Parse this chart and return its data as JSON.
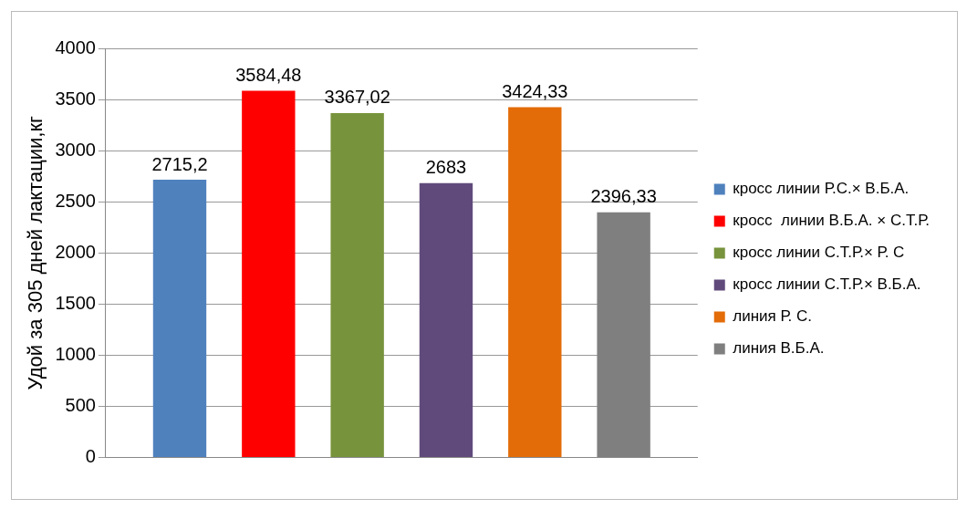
{
  "chart_data": {
    "type": "bar",
    "ylabel": "Удой за 305 дней лактации,кг",
    "categories": [
      null
    ],
    "series": [
      {
        "name": "кросс линии Р.С.× В.Б.А.",
        "color": "#4f81bd",
        "values": [
          2715.2
        ],
        "value_labels": [
          "2715,2"
        ]
      },
      {
        "name": "кросс  линии В.Б.А. × С.Т.Р.",
        "color": "#ff0000",
        "values": [
          3584.48
        ],
        "value_labels": [
          "3584,48"
        ]
      },
      {
        "name": "кросс линии С.Т.Р.× Р. С",
        "color": "#77933c",
        "values": [
          3367.02
        ],
        "value_labels": [
          "3367,02"
        ]
      },
      {
        "name": "кросс линии С.Т.Р.× В.Б.А.",
        "color": "#604a7b",
        "values": [
          2683
        ],
        "value_labels": [
          "2683"
        ]
      },
      {
        "name": "линия Р. С.",
        "color": "#e36c09",
        "values": [
          3424.33
        ],
        "value_labels": [
          "3424,33"
        ]
      },
      {
        "name": "линия В.Б.А.",
        "color": "#7f7f7f",
        "values": [
          2396.33
        ],
        "value_labels": [
          "2396,33"
        ]
      }
    ],
    "ylim": [
      0,
      4000
    ],
    "yticks": [
      0,
      500,
      1000,
      1500,
      2000,
      2500,
      3000,
      3500,
      4000
    ],
    "grid": "y",
    "legend": "right"
  }
}
